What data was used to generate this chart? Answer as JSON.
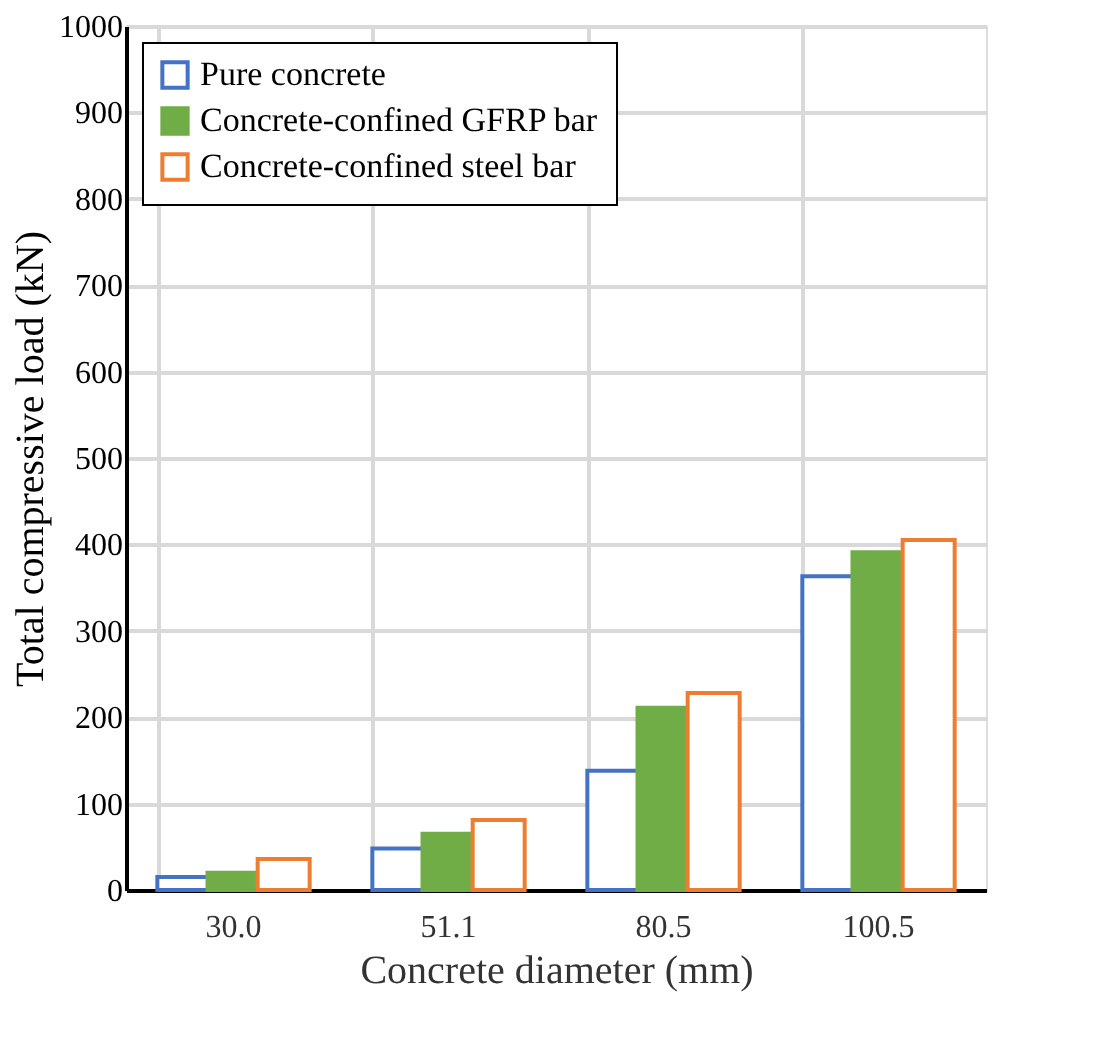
{
  "chart_data": {
    "type": "bar",
    "xlabel": "Concrete diameter (mm)",
    "ylabel": "Total compressive load (kN)",
    "categories": [
      "30.0",
      "51.1",
      "80.5",
      "100.5"
    ],
    "series": [
      {
        "name": "Pure concrete",
        "color": "#4472c4",
        "values": [
          15,
          48,
          138,
          363
        ]
      },
      {
        "name": "Concrete-confined GFRP bar",
        "color": "#70ad47",
        "values": [
          20,
          65,
          211,
          391
        ]
      },
      {
        "name": "Concrete-confined steel bar",
        "color": "#ed7d31",
        "values": [
          36,
          81,
          228,
          405
        ]
      }
    ],
    "ylim": [
      0,
      1000
    ],
    "yticks": [
      0,
      100,
      200,
      300,
      400,
      500,
      600,
      700,
      800,
      900,
      1000
    ],
    "grid": true,
    "legend": "top left"
  }
}
